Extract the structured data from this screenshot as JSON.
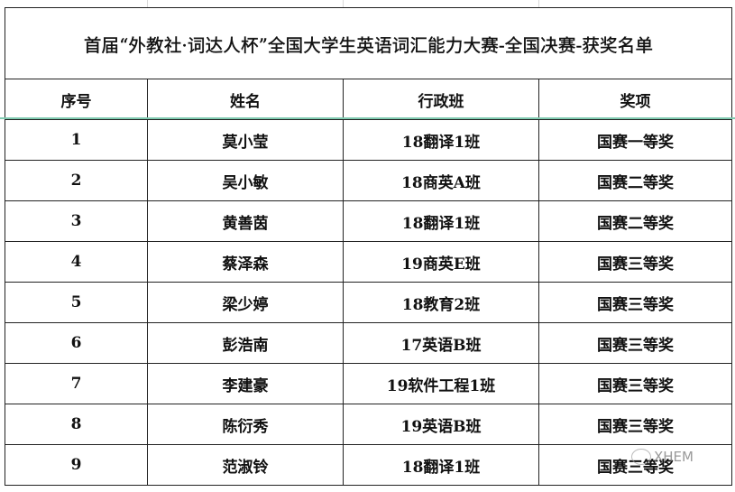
{
  "title": "首届“外教社·词达人杯”全国大学生英语词汇能力大赛-全国决赛-获奖名单",
  "columns": [
    "序号",
    "姓名",
    "行政班",
    "奖项"
  ],
  "rows": [
    [
      "1",
      "莫小莹",
      "18翻译1班",
      "国赛一等奖"
    ],
    [
      "2",
      "吴小敏",
      "18商英A班",
      "国赛二等奖"
    ],
    [
      "3",
      "黄善茵",
      "18翻译1班",
      "国赛二等奖"
    ],
    [
      "4",
      "蔡泽森",
      "19商英E班",
      "国赛三等奖"
    ],
    [
      "5",
      "梁少婷",
      "18教育2班",
      "国赛三等奖"
    ],
    [
      "6",
      "彭浩南",
      "17英语B班",
      "国赛三等奖"
    ],
    [
      "7",
      "李建豪",
      "19软件工程1班",
      "国赛三等奖"
    ],
    [
      "8",
      "陈衍秀",
      "19英语B班",
      "国赛三等奖"
    ],
    [
      "9",
      "范淑铃",
      "18翻译1班",
      "国赛三等奖"
    ]
  ],
  "watermark": {
    "text": "XHEM",
    "icon": "wechat-icon"
  },
  "colors": {
    "selection_line": "#7fcab0",
    "border": "#222222"
  }
}
